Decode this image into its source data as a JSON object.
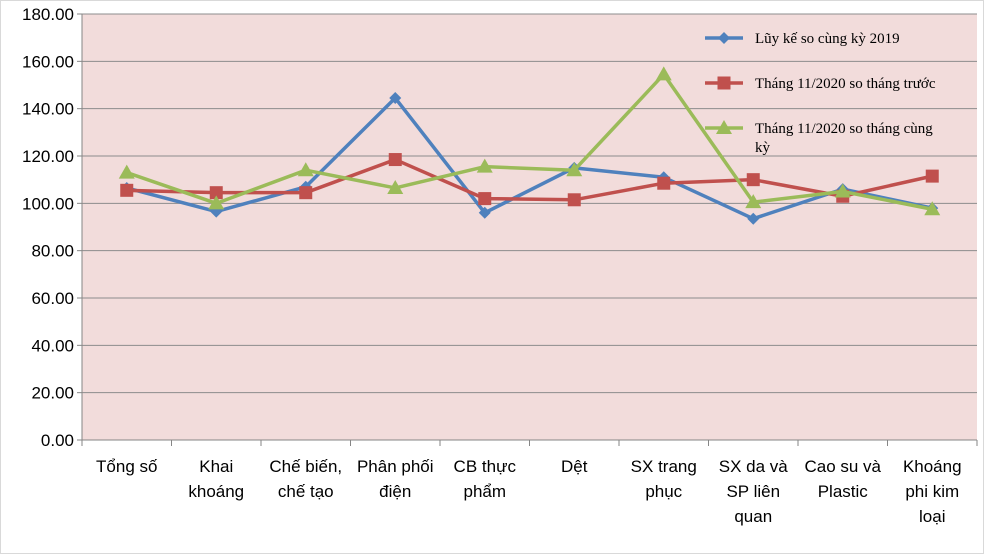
{
  "chart_data": {
    "type": "line",
    "title": "",
    "xlabel": "",
    "ylabel": "",
    "ylim": [
      0,
      180
    ],
    "ytick_step": 20,
    "ytick_labels": [
      "0.00",
      "20.00",
      "40.00",
      "60.00",
      "80.00",
      "100.00",
      "120.00",
      "140.00",
      "160.00",
      "180.00"
    ],
    "grid": true,
    "legend_position": "top-right",
    "categories": [
      [
        "Tổng số"
      ],
      [
        "Khai",
        "khoáng"
      ],
      [
        "Chế biến,",
        "chế tạo"
      ],
      [
        "Phân phối",
        "điện"
      ],
      [
        "CB thực",
        "phẩm"
      ],
      [
        "Dệt"
      ],
      [
        "SX trang",
        "phục"
      ],
      [
        "SX da và",
        "SP liên",
        "quan"
      ],
      [
        "Cao su và",
        "Plastic"
      ],
      [
        "Khoáng",
        "phi kim",
        "loại"
      ]
    ],
    "series": [
      {
        "name": [
          "Lũy kế so cùng kỳ 2019"
        ],
        "color": "#4f81bd",
        "marker": "diamond",
        "values": [
          106.5,
          96.5,
          107,
          144.5,
          96,
          115,
          111,
          93.5,
          106,
          98
        ]
      },
      {
        "name": [
          "Tháng 11/2020 so tháng trước"
        ],
        "color": "#c0504d",
        "marker": "square",
        "values": [
          105.5,
          104.5,
          104.5,
          118.5,
          102,
          101.5,
          108.5,
          110,
          103,
          111.5
        ]
      },
      {
        "name": [
          "Tháng 11/2020 so tháng cùng",
          "kỳ"
        ],
        "color": "#9bbb59",
        "marker": "triangle",
        "values": [
          113,
          100,
          114,
          106.5,
          115.5,
          114,
          154.5,
          100.5,
          105,
          97.5
        ]
      }
    ],
    "colors": {
      "plot_background": "#f2dcdb",
      "gridline": "#8c8c8c",
      "axis": "#868686",
      "frame": "#d9d9d9"
    }
  }
}
